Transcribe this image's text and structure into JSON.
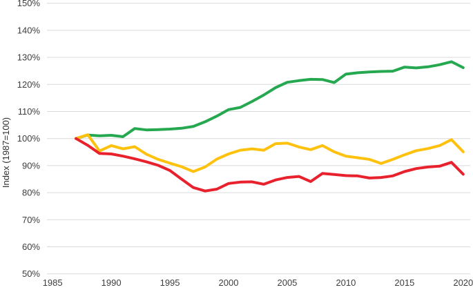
{
  "page": {
    "background_color": "#ffffff"
  },
  "chart_data": {
    "type": "line",
    "title": "",
    "xlabel": "",
    "ylabel": "Index (1987=100)",
    "grid": "horizontal",
    "legend": "none",
    "grid_color": "#d9d9d9",
    "tick_text_color": "#3d3d3d",
    "ylim": [
      50,
      150
    ],
    "xlim": [
      1984.52,
      2020.6
    ],
    "y_ticks": [
      {
        "value": 150,
        "label": "150%"
      },
      {
        "value": 140,
        "label": "140%"
      },
      {
        "value": 130,
        "label": "130%"
      },
      {
        "value": 120,
        "label": "120%"
      },
      {
        "value": 110,
        "label": "110%"
      },
      {
        "value": 100,
        "label": "100%"
      },
      {
        "value": 90,
        "label": "90%"
      },
      {
        "value": 80,
        "label": "80%"
      },
      {
        "value": 70,
        "label": "70%"
      },
      {
        "value": 60,
        "label": "60%"
      },
      {
        "value": 50,
        "label": "50%"
      }
    ],
    "x_ticks": [
      {
        "value": 1985,
        "label": "1985"
      },
      {
        "value": 1990,
        "label": "1990"
      },
      {
        "value": 1995,
        "label": "1995"
      },
      {
        "value": 2000,
        "label": "2000"
      },
      {
        "value": 2005,
        "label": "2005"
      },
      {
        "value": 2010,
        "label": "2010"
      },
      {
        "value": 2015,
        "label": "2015"
      },
      {
        "value": 2020,
        "label": "2020"
      }
    ],
    "x": [
      1987,
      1988,
      1989,
      1990,
      1991,
      1992,
      1993,
      1994,
      1995,
      1996,
      1997,
      1998,
      1999,
      2000,
      2001,
      2002,
      2003,
      2004,
      2005,
      2006,
      2007,
      2008,
      2009,
      2010,
      2011,
      2012,
      2013,
      2014,
      2015,
      2016,
      2017,
      2018,
      2019,
      2020
    ],
    "series": [
      {
        "name": "green-series",
        "color": "#25a84f",
        "values": [
          100,
          101.3,
          101,
          101.2,
          100.7,
          103.7,
          103.2,
          103.3,
          103.5,
          103.8,
          104.5,
          106.2,
          108.3,
          110.7,
          111.5,
          113.7,
          116.1,
          118.8,
          120.8,
          121.4,
          121.9,
          121.8,
          120.7,
          123.8,
          124.3,
          124.6,
          124.8,
          124.9,
          126.4,
          126.1,
          126.5,
          127.3,
          128.4,
          126.2
        ]
      },
      {
        "name": "yellow-series",
        "color": "#fec20e",
        "values": [
          100,
          101.4,
          95.4,
          97.4,
          96.2,
          97,
          94.2,
          92.3,
          90.9,
          89.6,
          87.8,
          89.5,
          92.4,
          94.3,
          95.7,
          96.2,
          95.7,
          98.1,
          98.3,
          96.9,
          95.9,
          97.4,
          95.1,
          93.5,
          92.9,
          92.3,
          90.8,
          92.3,
          94,
          95.5,
          96.3,
          97.4,
          99.6,
          95.1
        ]
      },
      {
        "name": "red-series",
        "color": "#e8212d",
        "values": [
          100,
          97.5,
          94.5,
          94.3,
          93.5,
          92.5,
          91.4,
          90.1,
          88.2,
          85,
          81.9,
          80.6,
          81.3,
          83.4,
          83.9,
          84,
          83.1,
          84.7,
          85.6,
          86,
          84.1,
          87.1,
          86.7,
          86.3,
          86.2,
          85.4,
          85.6,
          86.2,
          87.8,
          88.9,
          89.5,
          89.8,
          91.2,
          86.8
        ]
      }
    ]
  }
}
